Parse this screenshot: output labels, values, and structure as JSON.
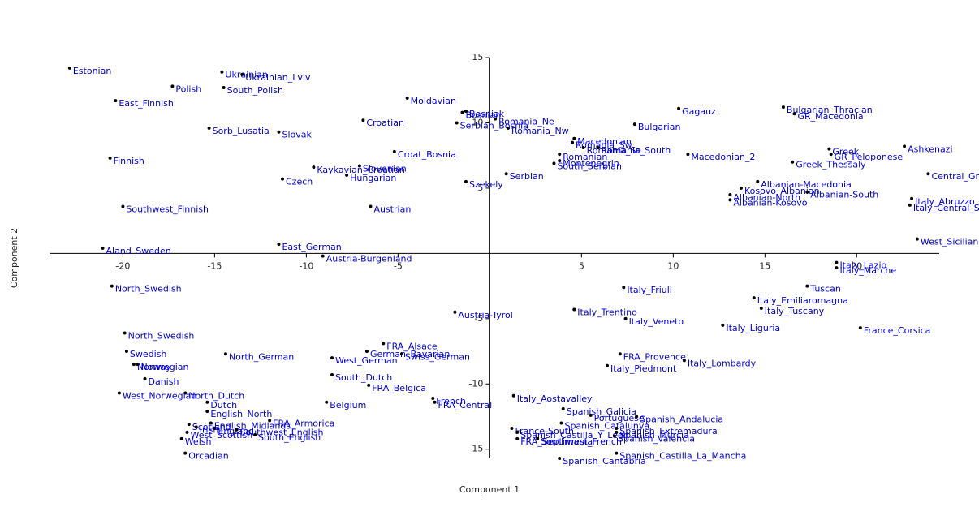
{
  "chart_data": {
    "type": "scatter",
    "x_label": "Component 1",
    "y_label": "Component 2",
    "xlim": [
      -24,
      24.5
    ],
    "ylim": [
      -15.7,
      15
    ],
    "xticks": [
      -20,
      -15,
      -10,
      -5,
      5,
      10,
      15,
      20
    ],
    "yticks": [
      -15,
      -10,
      -5,
      5,
      10,
      15
    ],
    "marker_color": "#000000",
    "label_color": "#0000cc",
    "labels": [
      "Estonian",
      "Ukrainian",
      "Ukrainian_Lviv",
      "Polish",
      "South_Polish",
      "East_Finnish",
      "Moldavian",
      "Bosnian",
      "Bosniak",
      "Romania_Ne",
      "Croatian",
      "Serbian_Bosnia",
      "Romania_Nw",
      "Sorb_Lusatia",
      "Slovak",
      "Finnish",
      "Croat_Bosnia",
      "Kaykavian_Croatian",
      "Slovenian",
      "Czech",
      "Hungarian",
      "Szekely",
      "Serbian",
      "Austrian",
      "Southwest_Finnish",
      "Romania_Sw",
      "Macedonian",
      "Romania_Se",
      "Romania_South",
      "Romanian",
      "Montenegrin",
      "South_Serbian",
      "Bulgarian",
      "Gagauz",
      "Bulgarian_Thracian",
      "GR_Macedonia",
      "Macedonian_2",
      "Greek",
      "GR_Peloponese",
      "Greek_Thessaly",
      "Ashkenazi",
      "Central_Greek",
      "Albanian-Macedonia",
      "Kosovo_Albanian",
      "Albanian-North",
      "Albanian-Kosovo",
      "Albanian-South",
      "Italy_Abruzzo",
      "Italy_Central_Sicily",
      "West_Sicilian",
      "Aland_Sweden",
      "East_German",
      "Austria-Burgenland",
      "Italy_Lazio",
      "Italy_Marche",
      "Tuscan",
      "Italy_Friuli",
      "North_Swedish",
      "Italy_Emiliaromagna",
      "Italy_Tuscany",
      "Austria-Tyrol",
      "Italy_Trentino",
      "Italy_Veneto",
      "Italy_Liguria",
      "France_Corsica",
      "North_Swedish",
      "FRA_Alsace",
      "German_Bavarian",
      "Swiss_German",
      "Swedish",
      "North_German",
      "West_German",
      "FRA_Provence",
      "Norway",
      "Norwegian",
      "Italy_Lombardy",
      "Italy_Piedmont",
      "South_Dutch",
      "Danish",
      "FRA_Belgica",
      "North_Dutch",
      "West_Norwegian",
      "French",
      "Italy_Aostavalley",
      "Belgium",
      "FRA_Central",
      "Dutch",
      "English_North",
      "Spanish_Galicia",
      "Portuguese",
      "FRA_Armorica",
      "Spanish_Catalunya",
      "English_Midlands",
      "Scotland",
      "Spanish_Andalucia",
      "Spanish_Extremadura",
      "Spanish_Murcia",
      "West_Scottish",
      "Irish",
      "England",
      "Southwest_English",
      "South_English",
      "France-South",
      "Spanish_Castilla_Y_Leon",
      "Southwest_French",
      "Spanish_Valencia",
      "FRA_Septimania",
      "Welsh",
      "Orcadian",
      "Spanish_Cantabria",
      "Spanish_Castilla_La_Mancha"
    ],
    "x": [
      -22.9,
      -14.6,
      -13.5,
      -17.3,
      -14.5,
      -20.4,
      -4.5,
      -1.5,
      -1.3,
      0.3,
      -6.9,
      -1.8,
      1.0,
      -15.3,
      -11.5,
      -20.7,
      -5.2,
      -9.6,
      -7.1,
      -11.3,
      -7.8,
      -1.3,
      0.9,
      -6.5,
      -20.0,
      4.5,
      4.6,
      5.1,
      5.9,
      3.8,
      3.8,
      3.5,
      7.9,
      10.3,
      16.0,
      16.6,
      10.8,
      18.5,
      18.6,
      16.5,
      22.6,
      23.9,
      14.6,
      13.7,
      13.1,
      13.1,
      17.3,
      23.0,
      22.9,
      23.3,
      -21.1,
      -11.5,
      -9.1,
      18.9,
      18.9,
      17.3,
      7.3,
      -20.6,
      14.4,
      14.8,
      -1.9,
      4.6,
      7.4,
      12.7,
      20.2,
      -19.9,
      -5.8,
      -6.7,
      -4.8,
      -19.8,
      -14.4,
      -8.6,
      7.1,
      -19.4,
      -19.2,
      10.6,
      6.4,
      -8.6,
      -18.8,
      -6.6,
      -16.6,
      -20.2,
      -3.1,
      1.3,
      -8.9,
      -3.0,
      -15.4,
      -15.4,
      4.0,
      5.5,
      -12.0,
      3.9,
      -15.2,
      -16.4,
      8.0,
      6.9,
      6.9,
      -16.5,
      -16.0,
      -15.0,
      -13.8,
      -12.8,
      1.2,
      1.5,
      2.6,
      6.8,
      1.5,
      -16.8,
      -16.6,
      3.8,
      6.9
    ],
    "values": [
      14.2,
      13.9,
      13.7,
      12.8,
      12.7,
      11.7,
      11.9,
      10.8,
      10.9,
      10.3,
      10.2,
      10.0,
      9.6,
      9.6,
      9.3,
      7.3,
      7.8,
      6.6,
      6.7,
      5.7,
      6.0,
      5.5,
      6.1,
      3.6,
      3.6,
      8.5,
      8.8,
      8.1,
      8.1,
      7.6,
      7.1,
      6.9,
      9.9,
      11.1,
      11.2,
      10.7,
      7.6,
      8.0,
      7.6,
      7.0,
      8.2,
      6.1,
      5.5,
      5.0,
      4.5,
      4.1,
      4.7,
      4.2,
      3.7,
      1.1,
      0.4,
      0.7,
      -0.2,
      -0.7,
      -1.1,
      -2.5,
      -2.6,
      -2.5,
      -3.4,
      -4.2,
      -4.5,
      -4.3,
      -5.0,
      -5.5,
      -5.7,
      -6.1,
      -6.9,
      -7.5,
      -7.7,
      -7.5,
      -7.7,
      -8.0,
      -7.7,
      -8.5,
      -8.5,
      -8.2,
      -8.6,
      -9.3,
      -9.6,
      -10.1,
      -10.7,
      -10.7,
      -11.1,
      -10.9,
      -11.4,
      -11.4,
      -11.4,
      -12.1,
      -11.9,
      -12.4,
      -12.8,
      -13.0,
      -13.0,
      -13.1,
      -12.5,
      -13.4,
      -13.7,
      -13.7,
      -13.3,
      -13.4,
      -13.5,
      -13.9,
      -13.4,
      -13.7,
      -14.2,
      -14.0,
      -14.2,
      -14.2,
      -15.3,
      -15.7,
      -15.3
    ]
  }
}
